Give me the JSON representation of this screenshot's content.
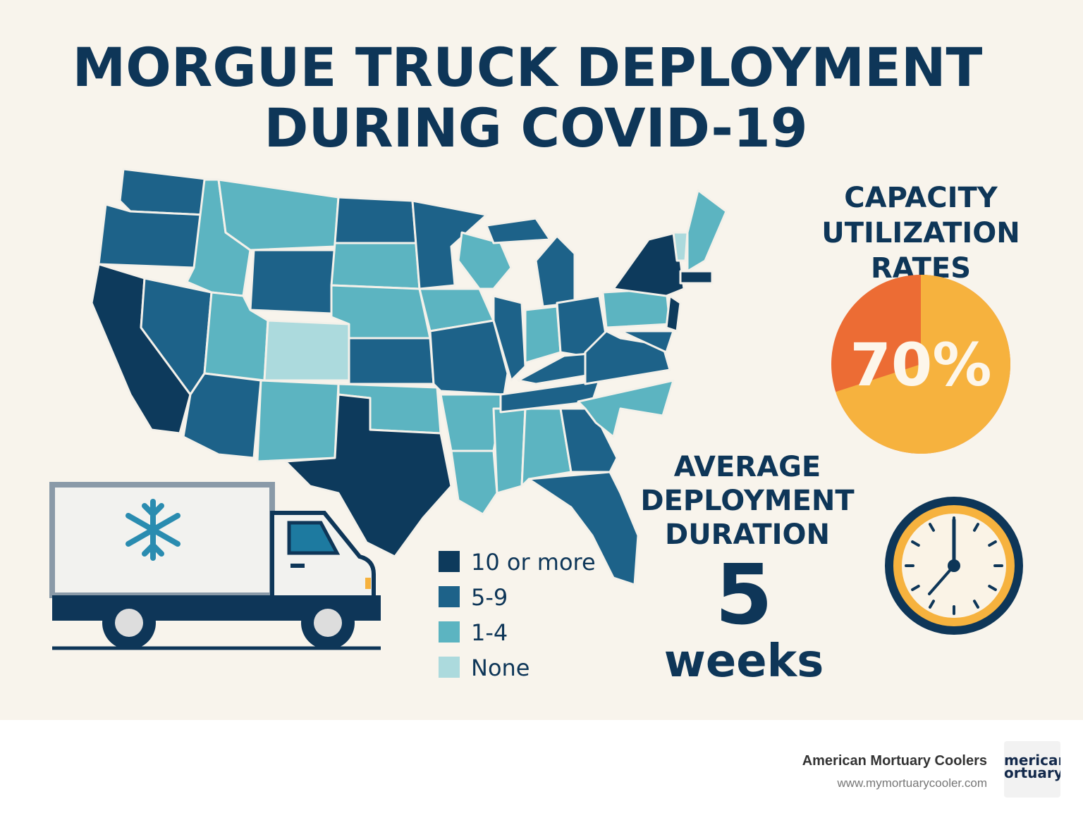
{
  "title": [
    "MORGUE TRUCK DEPLOYMENT",
    "DURING COVID-19"
  ],
  "legend": [
    {
      "label": "10 or more",
      "color": "#0d3a5c"
    },
    {
      "label": "5-9",
      "color": "#1d6289"
    },
    {
      "label": "1-4",
      "color": "#5cb4c1"
    },
    {
      "label": "None",
      "color": "#acdadd"
    }
  ],
  "capacity": {
    "title": [
      "CAPACITY",
      "UTILIZATION",
      "RATES"
    ],
    "value": 70,
    "label": "70%",
    "color": "#f6b23e",
    "rest_color": "#ec6c34"
  },
  "duration": {
    "title": [
      "AVERAGE",
      "DEPLOYMENT",
      "DURATION"
    ],
    "value": 5,
    "unit": "weeks"
  },
  "footer": {
    "company": "American Mortuary Coolers",
    "url": "www.mymortuarycooler.com",
    "logo": [
      "merican",
      "ortuary"
    ]
  }
}
